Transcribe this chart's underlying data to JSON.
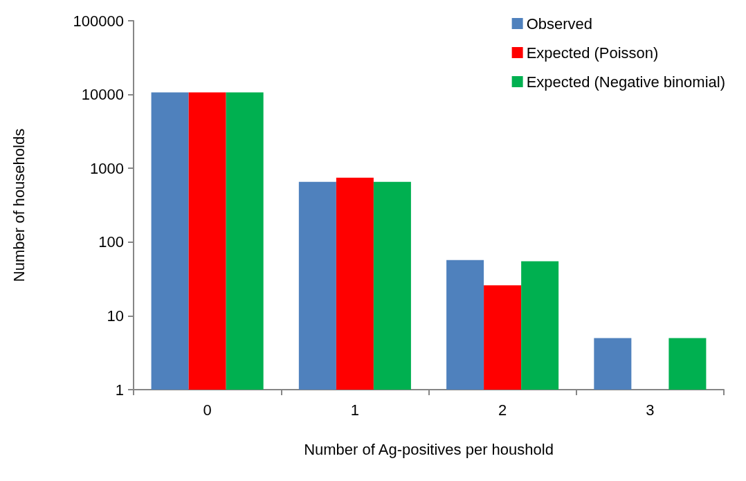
{
  "chart_data": {
    "type": "bar",
    "xlabel": "Number of Ag-positives per houshold",
    "ylabel": "Number of households",
    "categories": [
      "0",
      "1",
      "2",
      "3"
    ],
    "series": [
      {
        "name": "Observed",
        "color": "#4f81bd",
        "values": [
          10700,
          657,
          57,
          5
        ]
      },
      {
        "name": "Expected (Poisson)",
        "color": "#ff0000",
        "values": [
          10700,
          745,
          26,
          null
        ]
      },
      {
        "name": "Expected (Negative binomial)",
        "color": "#00b050",
        "values": [
          10700,
          657,
          55,
          5
        ]
      }
    ],
    "log": "y",
    "ylim": [
      1,
      100000
    ],
    "yticks": [
      1,
      10,
      100,
      1000,
      10000,
      100000
    ],
    "grid": false,
    "legend": "top right"
  }
}
